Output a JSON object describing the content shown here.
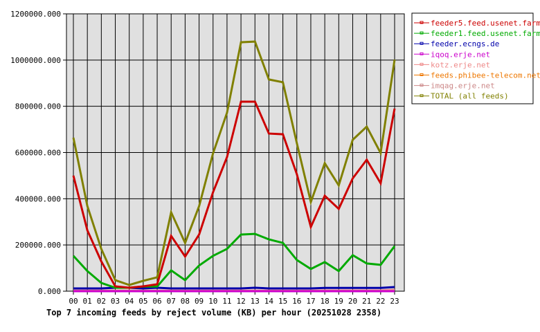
{
  "chart_data": {
    "type": "line",
    "title": "Top 7 incoming feeds by reject volume (KB) per hour (20251028 2358)",
    "xlabel": "",
    "ylabel": "",
    "ylim": [
      0,
      1200000
    ],
    "grid": true,
    "legend_position": "right",
    "y_ticks": [
      "0.000",
      "200000.000",
      "400000.000",
      "600000.000",
      "800000.000",
      "1000000.000",
      "1200000.000"
    ],
    "categories": [
      "00",
      "01",
      "02",
      "03",
      "04",
      "05",
      "06",
      "07",
      "08",
      "09",
      "10",
      "11",
      "12",
      "13",
      "14",
      "15",
      "16",
      "17",
      "18",
      "19",
      "20",
      "21",
      "22",
      "23"
    ],
    "series": [
      {
        "name": "feeder5.feed.usenet.farm",
        "color": "#cc0000",
        "values": [
          500000,
          263000,
          129000,
          21000,
          15000,
          21000,
          30000,
          239000,
          150000,
          245000,
          428000,
          580000,
          820000,
          820000,
          682000,
          679000,
          506000,
          278000,
          413000,
          356000,
          488000,
          569000,
          467000,
          790000
        ]
      },
      {
        "name": "feeder1.feed.usenet.farm",
        "color": "#00aa00",
        "values": [
          153000,
          87000,
          36000,
          15000,
          15000,
          20000,
          20000,
          90000,
          48000,
          111000,
          153000,
          183000,
          245000,
          248000,
          224000,
          209000,
          135000,
          96000,
          126000,
          87000,
          156000,
          120000,
          114000,
          195000
        ]
      },
      {
        "name": "feeder.ecngs.de",
        "color": "#0000aa",
        "values": [
          12000,
          12000,
          12000,
          15000,
          15000,
          12000,
          15000,
          12000,
          12000,
          12000,
          12000,
          12000,
          12000,
          15000,
          12000,
          12000,
          12000,
          12000,
          14000,
          14000,
          14000,
          14000,
          14000,
          18000
        ]
      },
      {
        "name": "iqoq.erje.net",
        "color": "#cc00cc",
        "values": [
          0,
          0,
          0,
          0,
          0,
          0,
          0,
          0,
          0,
          0,
          0,
          0,
          0,
          0,
          0,
          0,
          0,
          0,
          0,
          0,
          0,
          0,
          0,
          0
        ]
      },
      {
        "name": "kotz.erje.net",
        "color": "#ee8888",
        "values": [
          2000,
          2000,
          2000,
          2000,
          2000,
          2000,
          2000,
          2000,
          2000,
          2000,
          2000,
          2000,
          2000,
          2000,
          2000,
          2000,
          2000,
          2000,
          3000,
          3000,
          3000,
          3000,
          3000,
          6000
        ]
      },
      {
        "name": "feeds.phibee-telecom.net",
        "color": "#ee7700",
        "values": [
          0,
          0,
          0,
          0,
          0,
          0,
          0,
          0,
          0,
          0,
          0,
          0,
          0,
          0,
          0,
          0,
          0,
          0,
          0,
          0,
          0,
          0,
          0,
          0
        ]
      },
      {
        "name": "imqag.erje.net",
        "color": "#cc8888",
        "values": [
          0,
          0,
          0,
          0,
          0,
          0,
          0,
          0,
          0,
          0,
          0,
          0,
          0,
          0,
          0,
          0,
          0,
          0,
          0,
          0,
          0,
          0,
          0,
          0
        ]
      },
      {
        "name": "TOTAL (all feeds)",
        "color": "#808000",
        "values": [
          664000,
          368000,
          183000,
          48000,
          27000,
          45000,
          60000,
          341000,
          209000,
          368000,
          596000,
          772000,
          1077000,
          1080000,
          916000,
          904000,
          640000,
          386000,
          554000,
          458000,
          655000,
          712000,
          598000,
          1002000
        ]
      }
    ]
  }
}
